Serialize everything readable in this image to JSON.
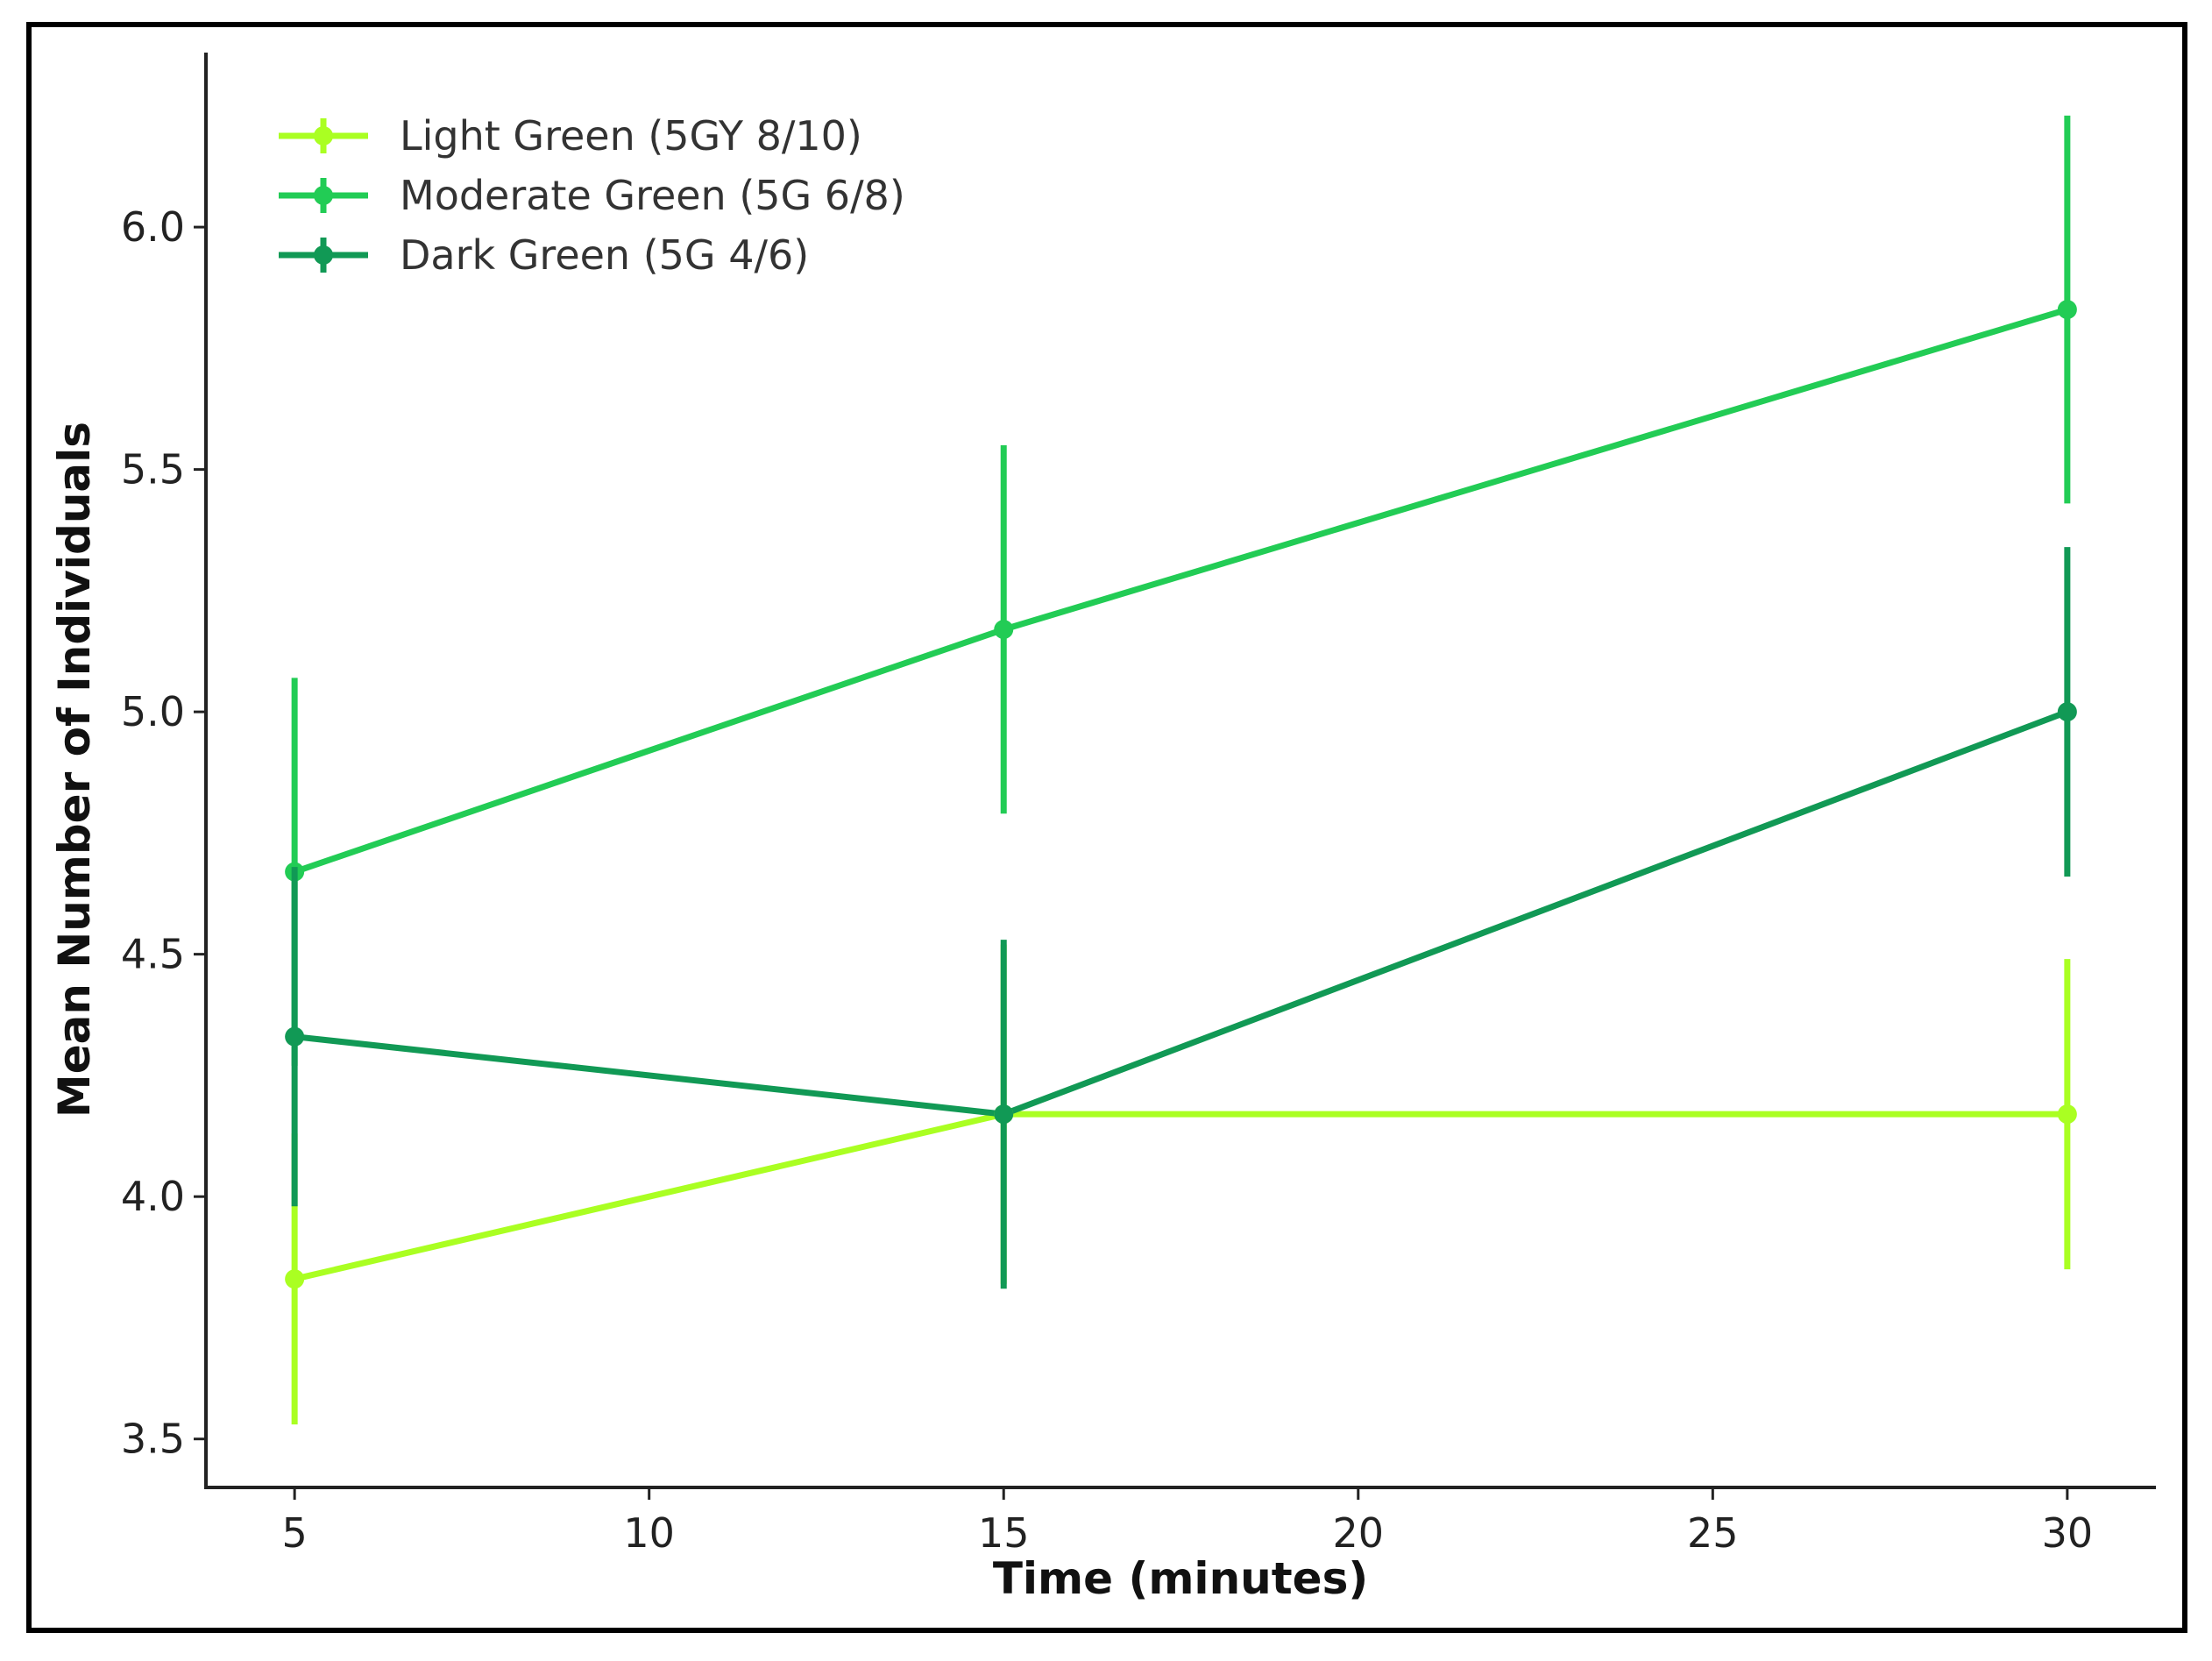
{
  "chart_data": {
    "type": "line",
    "xlabel": "Time (minutes)",
    "ylabel": "Mean Number of Individuals",
    "xlim": [
      3.75,
      31.25
    ],
    "ylim": [
      3.4,
      6.36
    ],
    "xticks": [
      5,
      10,
      15,
      20,
      25,
      30
    ],
    "yticks": [
      3.5,
      4.0,
      4.5,
      5.0,
      5.5,
      6.0
    ],
    "xtick_labels": [
      "5",
      "10",
      "15",
      "20",
      "25",
      "30"
    ],
    "ytick_labels": [
      "3.5",
      "4.0",
      "4.5",
      "5.0",
      "5.5",
      "6.0"
    ],
    "grid": false,
    "legend_position": "top-left",
    "x": [
      5,
      15,
      30
    ],
    "series": [
      {
        "name": "Light Green (5GY 8/10)",
        "color": "#aaff22",
        "values": [
          3.83,
          4.17,
          4.17
        ],
        "errors": [
          0.3,
          0.35,
          0.32
        ]
      },
      {
        "name": "Moderate Green (5G 6/8)",
        "color": "#22cc55",
        "values": [
          4.67,
          5.17,
          5.83
        ],
        "errors": [
          0.4,
          0.38,
          0.4
        ]
      },
      {
        "name": "Dark Green (5G 4/6)",
        "color": "#119955",
        "values": [
          4.33,
          4.17,
          5.0
        ],
        "errors": [
          0.35,
          0.36,
          0.34
        ]
      }
    ]
  }
}
